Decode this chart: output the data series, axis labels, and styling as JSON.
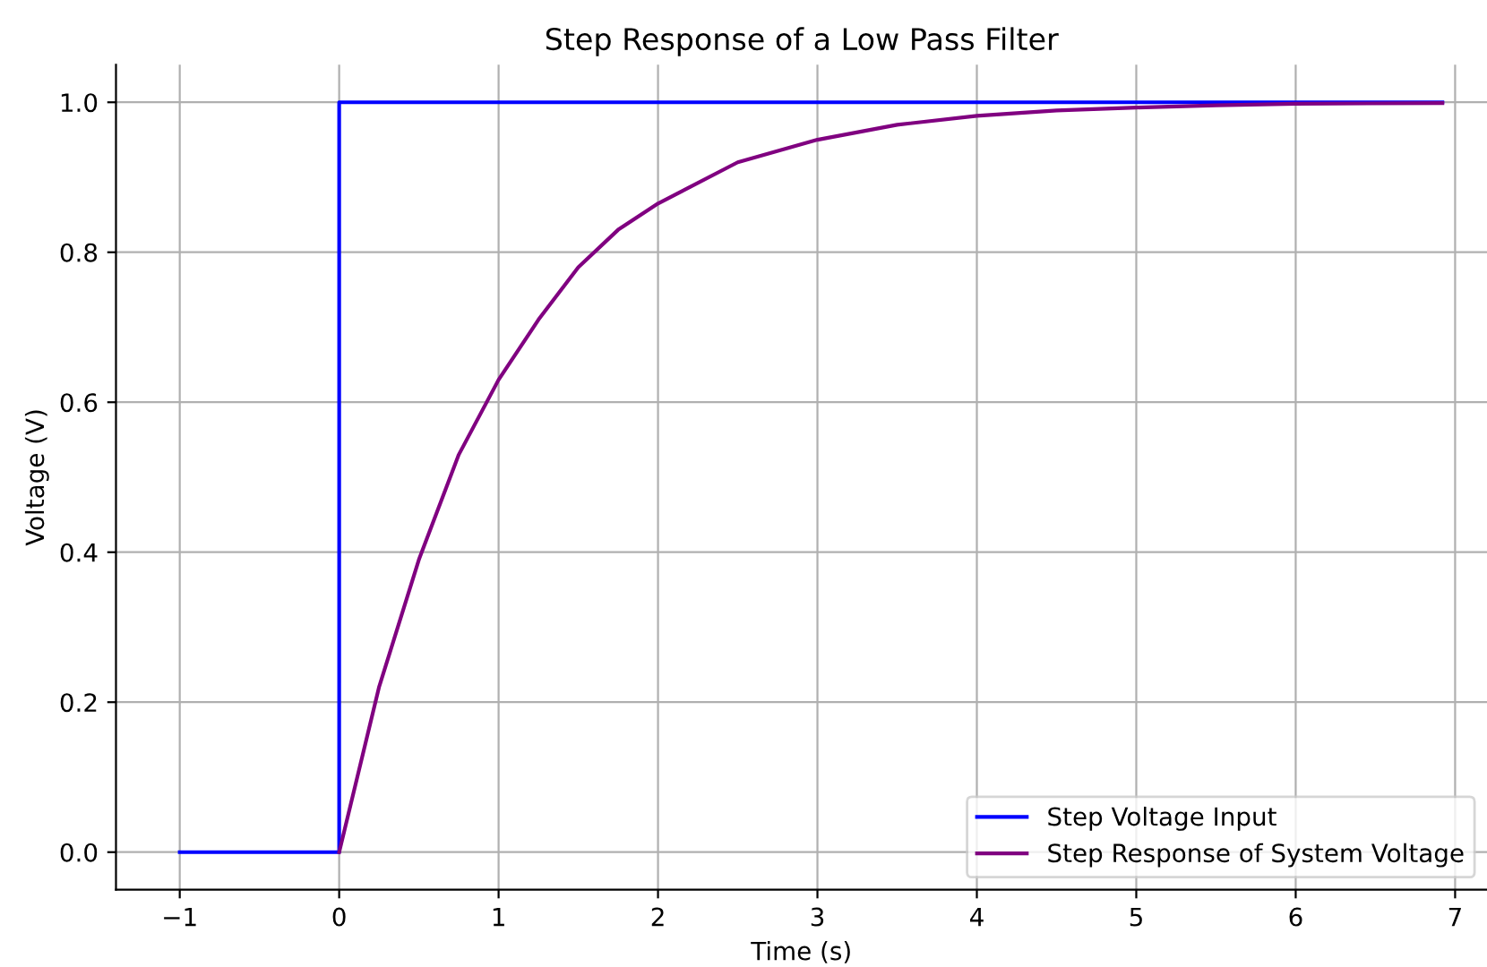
{
  "chart_data": {
    "type": "line",
    "title": "Step Response of a Low Pass Filter",
    "xlabel": "Time (s)",
    "ylabel": "Voltage (V)",
    "series": [
      {
        "name": "Step Voltage Input",
        "color": "#0000ff",
        "x": [
          -1,
          0,
          0,
          6.92
        ],
        "values": [
          0,
          0,
          1,
          1
        ]
      },
      {
        "name": "Step Response of System Voltage",
        "color": "#800080",
        "x": [
          0,
          0.25,
          0.5,
          0.75,
          1,
          1.25,
          1.5,
          1.75,
          2,
          2.5,
          3,
          3.5,
          4,
          4.5,
          5,
          5.5,
          6,
          6.92
        ],
        "values": [
          0,
          0.22,
          0.39,
          0.53,
          0.63,
          0.71,
          0.78,
          0.83,
          0.865,
          0.92,
          0.95,
          0.97,
          0.982,
          0.989,
          0.993,
          0.996,
          0.998,
          0.999
        ]
      }
    ],
    "xlim": [
      -1.4,
      7.2
    ],
    "ylim": [
      -0.05,
      1.05
    ],
    "xticks": [
      {
        "value": -1,
        "label": "−1"
      },
      0,
      1,
      2,
      3,
      4,
      5,
      6,
      7
    ],
    "yticks": [
      {
        "value": 0,
        "label": "0.0"
      },
      {
        "value": 0.2,
        "label": "0.2"
      },
      {
        "value": 0.4,
        "label": "0.4"
      },
      {
        "value": 0.6,
        "label": "0.6"
      },
      {
        "value": 0.8,
        "label": "0.8"
      },
      {
        "value": 1,
        "label": "1.0"
      }
    ],
    "grid": true,
    "legend": "bottom right"
  }
}
